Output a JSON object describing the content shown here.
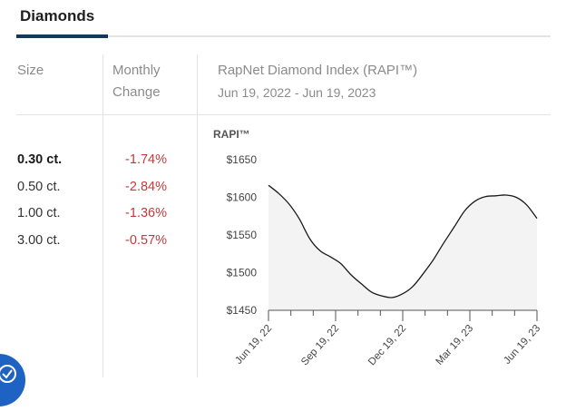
{
  "tab": {
    "title": "Diamonds"
  },
  "table": {
    "col_size": "Size",
    "col_change_1": "Monthly",
    "col_change_2": "Change",
    "index_title": "RapNet Diamond Index (RAPI™)",
    "date_range": "Jun 19, 2022 - Jun 19, 2023",
    "rows": [
      {
        "size": "0.30 ct.",
        "change": "-1.74%"
      },
      {
        "size": "0.50 ct.",
        "change": "-2.84%"
      },
      {
        "size": "1.00 ct.",
        "change": "-1.36%"
      },
      {
        "size": "3.00 ct.",
        "change": "-0.57%"
      }
    ]
  },
  "colors": {
    "negative": "#c43b3b",
    "accent": "#0f3a5c",
    "line": "#1a1a1a",
    "area": "#f3f3f3"
  },
  "chart_data": {
    "type": "area",
    "ylabel": "RAPI™",
    "ylim": [
      1450,
      1650
    ],
    "yticks": [
      "$1650",
      "$1600",
      "$1550",
      "$1500",
      "$1450"
    ],
    "ytick_values": [
      1650,
      1600,
      1550,
      1500,
      1450
    ],
    "xticks": [
      "Jun 19, 22",
      "Sep 19, 22",
      "Dec 19, 22",
      "Mar 19, 23",
      "Jun 19, 23"
    ],
    "series": [
      {
        "x": [
          "2022-06-19",
          "2022-07-03",
          "2022-07-17",
          "2022-07-31",
          "2022-08-14",
          "2022-08-28",
          "2022-09-11",
          "2022-09-25",
          "2022-10-09",
          "2022-10-23",
          "2022-11-06",
          "2022-11-20",
          "2022-12-04",
          "2022-12-18",
          "2023-01-01",
          "2023-01-15",
          "2023-01-29",
          "2023-02-12",
          "2023-02-26",
          "2023-03-12",
          "2023-03-26",
          "2023-04-09",
          "2023-04-23",
          "2023-05-07",
          "2023-05-21",
          "2023-06-04",
          "2023-06-19"
        ],
        "values": [
          1616,
          1605,
          1591,
          1571,
          1545,
          1529,
          1521,
          1512,
          1497,
          1485,
          1474,
          1469,
          1467,
          1472,
          1482,
          1499,
          1518,
          1540,
          1561,
          1582,
          1595,
          1601,
          1602,
          1603,
          1600,
          1590,
          1572
        ]
      }
    ]
  }
}
